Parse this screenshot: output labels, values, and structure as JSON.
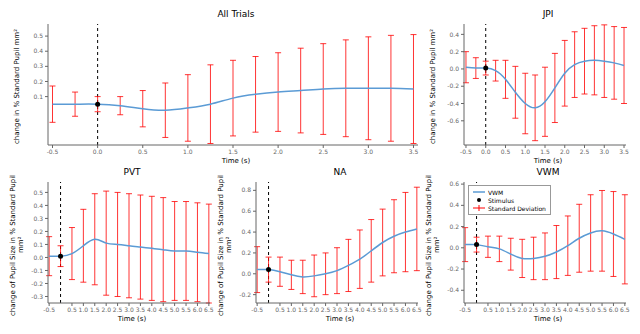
{
  "chart_data": [
    {
      "type": "line",
      "title": "All Trials",
      "x_label": "Time (s)",
      "y_label": "change in % Standard Pupil mm²",
      "x": [
        -0.5,
        -0.25,
        0.0,
        0.25,
        0.5,
        0.75,
        1.0,
        1.25,
        1.5,
        1.75,
        2.0,
        2.25,
        2.5,
        2.75,
        3.0,
        3.25,
        3.5
      ],
      "series": [
        {
          "color": "#5b9bd5",
          "values": [
            0.05,
            0.05,
            0.05,
            0.04,
            0.02,
            0.01,
            0.025,
            0.05,
            0.09,
            0.115,
            0.13,
            0.14,
            0.15,
            0.155,
            0.155,
            0.155,
            0.15
          ]
        }
      ],
      "error_bars": {
        "color": "#ff0000",
        "values": [
          0.12,
          0.08,
          0.05,
          0.06,
          0.12,
          0.18,
          0.22,
          0.26,
          0.25,
          0.25,
          0.26,
          0.28,
          0.3,
          0.32,
          0.34,
          0.35,
          0.36
        ]
      },
      "stimulus": {
        "x": 0.0,
        "color": "black"
      },
      "xlim": [
        -0.55,
        3.55
      ],
      "xticks": [
        -0.5,
        {
          "value": 0.0,
          "label": "0.0"
        },
        0.5,
        {
          "value": 1.0,
          "label": "1.0"
        },
        1.5,
        {
          "value": 2.0,
          "label": "2.0"
        },
        2.5,
        {
          "value": 3.0,
          "label": "3.0"
        },
        3.5
      ],
      "ylim": [
        -0.22,
        0.58
      ],
      "yticks": [
        0.1,
        0.2,
        0.3,
        0.4,
        0.5
      ],
      "grid": false
    },
    {
      "type": "line",
      "title": "JPI",
      "x_label": "Time (s)",
      "y_label": "change in % Standard Pupil mm²",
      "x": [
        -0.5,
        -0.25,
        0.0,
        0.25,
        0.5,
        0.75,
        1.0,
        1.25,
        1.5,
        1.75,
        2.0,
        2.25,
        2.5,
        2.75,
        3.0,
        3.25,
        3.5
      ],
      "series": [
        {
          "color": "#5b9bd5",
          "values": [
            0.02,
            0.01,
            0.01,
            -0.02,
            -0.12,
            -0.27,
            -0.4,
            -0.45,
            -0.38,
            -0.22,
            -0.05,
            0.05,
            0.09,
            0.1,
            0.09,
            0.07,
            0.04
          ]
        }
      ],
      "error_bars": {
        "color": "#ff0000",
        "values": [
          0.18,
          0.12,
          0.08,
          0.12,
          0.22,
          0.3,
          0.35,
          0.38,
          0.4,
          0.4,
          0.38,
          0.38,
          0.38,
          0.4,
          0.42,
          0.42,
          0.44
        ]
      },
      "stimulus": {
        "x": 0.0,
        "color": "black"
      },
      "xlim": [
        -0.55,
        3.55
      ],
      "xticks": [
        -0.5,
        {
          "value": 0.0,
          "label": "0.0"
        },
        0.5,
        {
          "value": 1.0,
          "label": "1.0"
        },
        1.5,
        {
          "value": 2.0,
          "label": "2.0"
        },
        2.5,
        {
          "value": 3.0,
          "label": "3.0"
        },
        3.5
      ],
      "ylim": [
        -0.88,
        0.52
      ],
      "yticks": [
        -0.6,
        -0.4,
        -0.2,
        {
          "value": 0.0,
          "label": "0.0"
        },
        0.2,
        0.4
      ],
      "grid": false
    },
    {
      "type": "line",
      "title": "PVT",
      "x_label": "Time (s)",
      "y_label": "change of Pupil Size in % Standard Pupil mm²",
      "x": [
        -0.5,
        0.0,
        0.5,
        1.0,
        1.5,
        2.0,
        2.5,
        3.0,
        3.5,
        4.0,
        4.5,
        5.0,
        5.5,
        6.0,
        6.5
      ],
      "series": [
        {
          "color": "#5b9bd5",
          "values": [
            0.01,
            0.01,
            0.03,
            0.09,
            0.14,
            0.11,
            0.1,
            0.09,
            0.08,
            0.07,
            0.06,
            0.05,
            0.05,
            0.04,
            0.03
          ]
        }
      ],
      "error_bars": {
        "color": "#ff0000",
        "values": [
          0.15,
          0.08,
          0.2,
          0.28,
          0.35,
          0.4,
          0.4,
          0.4,
          0.4,
          0.4,
          0.4,
          0.38,
          0.38,
          0.38,
          0.38
        ]
      },
      "stimulus": {
        "x": 0.0,
        "color": "black"
      },
      "xlim": [
        -0.55,
        6.55
      ],
      "xticks": [
        -0.5,
        0.5,
        {
          "value": 1.0,
          "label": "1.0"
        },
        1.5,
        {
          "value": 2.0,
          "label": "2.0"
        },
        2.5,
        {
          "value": 3.0,
          "label": "3.0"
        },
        3.5,
        {
          "value": 4.0,
          "label": "4.0"
        },
        4.5,
        {
          "value": 5.0,
          "label": "5.0"
        },
        5.5,
        {
          "value": 6.0,
          "label": "6.0"
        },
        6.5
      ],
      "ylim": [
        -0.35,
        0.58
      ],
      "yticks": [
        -0.3,
        -0.2,
        -0.1,
        {
          "value": 0.0,
          "label": "0.0"
        },
        0.1,
        0.2,
        0.3,
        0.4,
        0.5
      ],
      "grid": false
    },
    {
      "type": "line",
      "title": "NA",
      "x_label": "Time (s)",
      "y_label": "change of Pupil Size in % Standard Pupil mm²",
      "x": [
        -0.5,
        0.0,
        0.5,
        1.0,
        1.5,
        2.0,
        2.5,
        3.0,
        3.5,
        4.0,
        4.5,
        5.0,
        5.5,
        6.0,
        6.5
      ],
      "series": [
        {
          "color": "#5b9bd5",
          "values": [
            0.04,
            0.04,
            0.02,
            -0.01,
            -0.03,
            -0.02,
            0.0,
            0.03,
            0.08,
            0.14,
            0.22,
            0.3,
            0.36,
            0.4,
            0.43
          ]
        }
      ],
      "error_bars": {
        "color": "#ff0000",
        "values": [
          0.22,
          0.12,
          0.14,
          0.14,
          0.16,
          0.2,
          0.2,
          0.22,
          0.25,
          0.28,
          0.3,
          0.32,
          0.35,
          0.38,
          0.4
        ]
      },
      "stimulus": {
        "x": 0.0,
        "color": "black"
      },
      "xlim": [
        -0.55,
        6.55
      ],
      "xticks": [
        -0.5,
        0.5,
        {
          "value": 1.0,
          "label": "1.0"
        },
        1.5,
        {
          "value": 2.0,
          "label": "2.0"
        },
        2.5,
        {
          "value": 3.0,
          "label": "3.0"
        },
        3.5,
        {
          "value": 4.0,
          "label": "4.0"
        },
        4.5,
        {
          "value": 5.0,
          "label": "5.0"
        },
        5.5,
        {
          "value": 6.0,
          "label": "6.0"
        },
        6.5
      ],
      "ylim": [
        -0.28,
        0.88
      ],
      "yticks": [
        -0.2,
        {
          "value": 0.0,
          "label": "0.0"
        },
        0.2,
        0.4,
        0.6,
        0.8
      ],
      "grid": false
    },
    {
      "type": "line",
      "title": "VWM",
      "x_label": "Time (s)",
      "y_label": "change of Pupil Size in % Standard Pupil mm²",
      "x": [
        -0.5,
        0.0,
        0.5,
        1.0,
        1.5,
        2.0,
        2.5,
        3.0,
        3.5,
        4.0,
        4.5,
        5.0,
        5.5,
        6.0,
        6.5
      ],
      "series": [
        {
          "name": "VWM",
          "color": "#5b9bd5",
          "values": [
            0.03,
            0.03,
            0.01,
            -0.01,
            -0.06,
            -0.1,
            -0.1,
            -0.08,
            -0.04,
            0.02,
            0.09,
            0.14,
            0.16,
            0.13,
            0.08
          ]
        }
      ],
      "error_bars": {
        "name": "Standard Deviation",
        "color": "#ff0000",
        "values": [
          0.16,
          0.07,
          0.1,
          0.12,
          0.15,
          0.18,
          0.2,
          0.22,
          0.25,
          0.28,
          0.32,
          0.36,
          0.38,
          0.4,
          0.42
        ]
      },
      "stimulus": {
        "name": "Stimulus",
        "x": 0.0,
        "color": "black"
      },
      "xlim": [
        -0.55,
        6.55
      ],
      "xticks": [
        -0.5,
        0.5,
        {
          "value": 1.0,
          "label": "1.0"
        },
        1.5,
        {
          "value": 2.0,
          "label": "2.0"
        },
        2.5,
        {
          "value": 3.0,
          "label": "3.0"
        },
        3.5,
        {
          "value": 4.0,
          "label": "4.0"
        },
        4.5,
        {
          "value": 5.0,
          "label": "5.0"
        },
        5.5,
        {
          "value": 6.0,
          "label": "6.0"
        },
        6.5
      ],
      "ylim": [
        -0.52,
        0.62
      ],
      "yticks": [
        -0.4,
        -0.2,
        {
          "value": 0.0,
          "label": "0.0"
        },
        0.2,
        0.4,
        0.6
      ],
      "grid": false,
      "legend": "upper left"
    }
  ]
}
